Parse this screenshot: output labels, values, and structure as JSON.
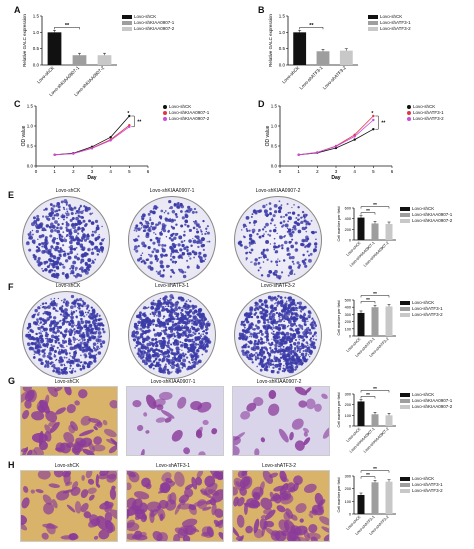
{
  "panel_labels": [
    "A",
    "B",
    "C",
    "D",
    "E",
    "F",
    "G",
    "H"
  ],
  "colors": {
    "black": "#111111",
    "gray": "#9e9e9e",
    "light": "#c8c8c8",
    "red": "#e5363d",
    "magenta": "#c94be0",
    "dish_colony": "#3b3ba8",
    "stain_purple": "#8a3a9a",
    "stain_bg_yellow": "#d9b36a",
    "stain_bg_light": "#d9d4ea"
  },
  "A": {
    "legend": [
      "Lovo-shCK",
      "Lovo-shKIAA0907-1",
      "Lovo-shKIAA0907-2"
    ],
    "ylabel": "Relative GALC expression",
    "sig": "**",
    "chart_data": {
      "type": "bar",
      "categories": [
        "Lovo-shCK",
        "Lovo-shKIAA0907-1",
        "Lovo-shKIAA0907-2"
      ],
      "values": [
        1.0,
        0.3,
        0.3
      ],
      "ylim": [
        0,
        1.5
      ],
      "yticks": [
        "0.0",
        "0.5",
        "1.0",
        "1.5"
      ]
    }
  },
  "B": {
    "legend": [
      "Lovo-shCK",
      "Lovo-shATF3-1",
      "Lovo-shATF3-2"
    ],
    "ylabel": "Relative GALC expression",
    "sig": "**",
    "chart_data": {
      "type": "bar",
      "categories": [
        "Lovo-shCK",
        "Lovo-shATF3-1",
        "Lovo-shATF3-2"
      ],
      "values": [
        1.0,
        0.42,
        0.44
      ],
      "ylim": [
        0,
        1.5
      ],
      "yticks": [
        "0.0",
        "0.5",
        "1.0",
        "1.5"
      ]
    }
  },
  "C": {
    "legend": [
      "Lovo-shCK",
      "Lovo-shKIAA0907-1",
      "Lovo-shKIAA0907-2"
    ],
    "xlabel": "Day",
    "ylabel": "OD value",
    "sig": [
      "*",
      "**"
    ],
    "chart_data": {
      "type": "line",
      "x": [
        1,
        2,
        3,
        4,
        5
      ],
      "series": [
        {
          "name": "Lovo-shCK",
          "values": [
            0.28,
            0.32,
            0.48,
            0.72,
            1.25
          ]
        },
        {
          "name": "Lovo-shKIAA0907-1",
          "values": [
            0.28,
            0.31,
            0.45,
            0.66,
            1.02
          ]
        },
        {
          "name": "Lovo-shKIAA0907-2",
          "values": [
            0.28,
            0.31,
            0.44,
            0.64,
            0.98
          ]
        }
      ],
      "ylim": [
        0.0,
        1.5
      ],
      "yticks": [
        "0.0",
        "0.5",
        "1.0",
        "1.5"
      ],
      "xticks": [
        "0",
        "1",
        "2",
        "3",
        "4",
        "5",
        "6"
      ]
    }
  },
  "D": {
    "legend": [
      "Lovo-shCK",
      "Lovo-shATF3-1",
      "Lovo-shATF3-2"
    ],
    "xlabel": "Day",
    "ylabel": "OD value",
    "sig": [
      "*",
      "**"
    ],
    "chart_data": {
      "type": "line",
      "x": [
        1,
        2,
        3,
        4,
        5
      ],
      "series": [
        {
          "name": "Lovo-shCK",
          "values": [
            0.28,
            0.33,
            0.45,
            0.66,
            0.92
          ]
        },
        {
          "name": "Lovo-shATF3-1",
          "values": [
            0.28,
            0.34,
            0.5,
            0.78,
            1.25
          ]
        },
        {
          "name": "Lovo-shATF3-2",
          "values": [
            0.28,
            0.34,
            0.49,
            0.74,
            1.15
          ]
        }
      ],
      "ylim": [
        0.0,
        1.5
      ],
      "yticks": [
        "0.0",
        "0.5",
        "1.0",
        "1.5"
      ],
      "xticks": [
        "0",
        "1",
        "2",
        "3",
        "4",
        "5",
        "6"
      ]
    }
  },
  "E": {
    "captions": [
      "Lovo-shCK",
      "Lovo-shKIAA0907-1",
      "Lovo-shKIAA0907-2"
    ],
    "legend": [
      "Lovo-shCK",
      "Lovo-shKIAA0907-1",
      "Lovo-shKIAA0907-2"
    ],
    "ylabel": "Cell number per field",
    "sig": [
      "**",
      "**"
    ],
    "chart_data": {
      "type": "bar",
      "categories": [
        "Lovo-shCK",
        "Lovo-shKIAA0907-1",
        "Lovo-shKIAA0907-2"
      ],
      "values": [
        420,
        310,
        300
      ],
      "ylim": [
        0,
        600
      ],
      "yticks": [
        "0",
        "200",
        "400",
        "600"
      ]
    }
  },
  "F": {
    "captions": [
      "Lovo-shCK",
      "Lovo-shATF3-1",
      "Lovo-shATF3-2"
    ],
    "legend": [
      "Lovo-shCK",
      "Lovo-shATF3-1",
      "Lovo-shATF3-2"
    ],
    "ylabel": "Cell number per field",
    "sig": [
      "**",
      "**"
    ],
    "chart_data": {
      "type": "bar",
      "categories": [
        "Lovo-shCK",
        "Lovo-shATF3-1",
        "Lovo-shATF3-2"
      ],
      "values": [
        320,
        400,
        410
      ],
      "ylim": [
        0,
        500
      ],
      "yticks": [
        "0",
        "100",
        "200",
        "300",
        "400",
        "500"
      ]
    }
  },
  "G": {
    "captions": [
      "Lovo-shCK",
      "Lovo-shKIAA0907-1",
      "Lovo-shKIAA0907-2"
    ],
    "legend": [
      "Lovo-shCK",
      "Lovo-shKIAA0907-1",
      "Lovo-shKIAA0907-2"
    ],
    "ylabel": "Cell number per field",
    "sig": [
      "**",
      "**"
    ],
    "chart_data": {
      "type": "bar",
      "categories": [
        "Lovo-shCK",
        "Lovo-shKIAA0907-1",
        "Lovo-shKIAA0907-2"
      ],
      "values": [
        230,
        110,
        100
      ],
      "ylim": [
        0,
        300
      ],
      "yticks": [
        "0",
        "100",
        "200",
        "300"
      ]
    }
  },
  "H": {
    "captions": [
      "Lovo-shCK",
      "Lovo-shATF3-1",
      "Lovo-shATF3-2"
    ],
    "legend": [
      "Lovo-shCK",
      "Lovo-shATF3-1",
      "Lovo-shATF3-2"
    ],
    "ylabel": "Cell number per field",
    "sig": [
      "**",
      "**"
    ],
    "chart_data": {
      "type": "bar",
      "categories": [
        "Lovo-shCK",
        "Lovo-shATF3-1",
        "Lovo-shATF3-2"
      ],
      "values": [
        150,
        250,
        255
      ],
      "ylim": [
        0,
        300
      ],
      "yticks": [
        "0",
        "100",
        "200",
        "300"
      ]
    }
  }
}
